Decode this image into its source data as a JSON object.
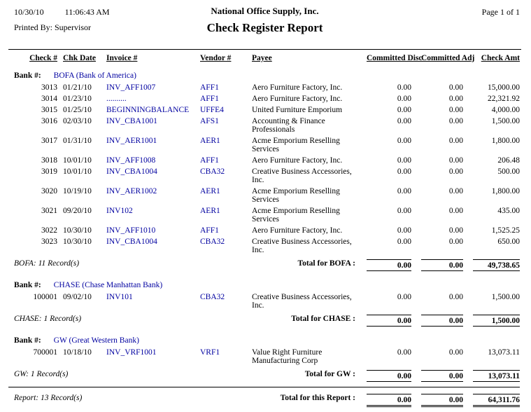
{
  "link_color": "#0000A0",
  "header": {
    "date": "10/30/10",
    "time": "11:06:43 AM",
    "company": "National Office Supply, Inc.",
    "page": "Page 1 of 1",
    "printed_by": "Printed By: Supervisor",
    "title": "Check Register Report"
  },
  "columns": {
    "check_no": "Check #",
    "chk_date": "Chk Date",
    "invoice_no": "Invoice #",
    "vendor_no": "Vendor #",
    "payee": "Payee",
    "committed_disc": "Committed Disc",
    "committed_adj": "Committed Adj",
    "check_amt": "Check Amt"
  },
  "bank_label": "Bank #:",
  "groups": [
    {
      "bank_name": "BOFA (Bank of America)",
      "rows": [
        {
          "check_no": "3013",
          "chk_date": "01/21/10",
          "invoice_no": "INV_AFF1007",
          "vendor_no": "AFF1",
          "payee": "Aero Furniture Factory, Inc.",
          "committed_disc": "0.00",
          "committed_adj": "0.00",
          "check_amt": "15,000.00"
        },
        {
          "check_no": "3014",
          "chk_date": "01/23/10",
          "invoice_no": "..........",
          "vendor_no": "AFF1",
          "payee": "Aero Furniture Factory, Inc.",
          "committed_disc": "0.00",
          "committed_adj": "0.00",
          "check_amt": "22,321.92"
        },
        {
          "check_no": "3015",
          "chk_date": "01/25/10",
          "invoice_no": "BEGINNINGBALANCE",
          "vendor_no": "UFFE4",
          "payee": "United Furniture Emporium",
          "committed_disc": "0.00",
          "committed_adj": "0.00",
          "check_amt": "4,000.00"
        },
        {
          "check_no": "3016",
          "chk_date": "02/03/10",
          "invoice_no": "INV_CBA1001",
          "vendor_no": "AFS1",
          "payee": "Accounting & Finance Professionals",
          "committed_disc": "0.00",
          "committed_adj": "0.00",
          "check_amt": "1,500.00"
        },
        {
          "check_no": "3017",
          "chk_date": "01/31/10",
          "invoice_no": "INV_AER1001",
          "vendor_no": "AER1",
          "payee": "Acme Emporium Reselling Services",
          "committed_disc": "0.00",
          "committed_adj": "0.00",
          "check_amt": "1,800.00"
        },
        {
          "check_no": "3018",
          "chk_date": "10/01/10",
          "invoice_no": "INV_AFF1008",
          "vendor_no": "AFF1",
          "payee": "Aero Furniture Factory, Inc.",
          "committed_disc": "0.00",
          "committed_adj": "0.00",
          "check_amt": "206.48"
        },
        {
          "check_no": "3019",
          "chk_date": "10/01/10",
          "invoice_no": "INV_CBA1004",
          "vendor_no": "CBA32",
          "payee": "Creative Business Accessories, Inc.",
          "committed_disc": "0.00",
          "committed_adj": "0.00",
          "check_amt": "500.00"
        },
        {
          "check_no": "3020",
          "chk_date": "10/19/10",
          "invoice_no": "INV_AER1002",
          "vendor_no": "AER1",
          "payee": "Acme Emporium Reselling Services",
          "committed_disc": "0.00",
          "committed_adj": "0.00",
          "check_amt": "1,800.00"
        },
        {
          "check_no": "3021",
          "chk_date": "09/20/10",
          "invoice_no": "INV102",
          "vendor_no": "AER1",
          "payee": "Acme Emporium Reselling Services",
          "committed_disc": "0.00",
          "committed_adj": "0.00",
          "check_amt": "435.00"
        },
        {
          "check_no": "3022",
          "chk_date": "10/30/10",
          "invoice_no": "INV_AFF1010",
          "vendor_no": "AFF1",
          "payee": "Aero Furniture Factory, Inc.",
          "committed_disc": "0.00",
          "committed_adj": "0.00",
          "check_amt": "1,525.25"
        },
        {
          "check_no": "3023",
          "chk_date": "10/30/10",
          "invoice_no": "INV_CBA1004",
          "vendor_no": "CBA32",
          "payee": "Creative Business Accessories, Inc.",
          "committed_disc": "0.00",
          "committed_adj": "0.00",
          "check_amt": "650.00"
        }
      ],
      "record_count": "BOFA: 11 Record(s)",
      "total_label": "Total for BOFA :",
      "totals": [
        "0.00",
        "0.00",
        "49,738.65"
      ]
    },
    {
      "bank_name": "CHASE (Chase Manhattan Bank)",
      "rows": [
        {
          "check_no": "100001",
          "chk_date": "09/02/10",
          "invoice_no": "INV101",
          "vendor_no": "CBA32",
          "payee": "Creative Business Accessories, Inc.",
          "committed_disc": "0.00",
          "committed_adj": "0.00",
          "check_amt": "1,500.00"
        }
      ],
      "record_count": "CHASE: 1 Record(s)",
      "total_label": "Total for CHASE :",
      "totals": [
        "0.00",
        "0.00",
        "1,500.00"
      ]
    },
    {
      "bank_name": "GW (Great Western Bank)",
      "rows": [
        {
          "check_no": "700001",
          "chk_date": "10/18/10",
          "invoice_no": "INV_VRF1001",
          "vendor_no": "VRF1",
          "payee": "Value Right Furniture Manufacturing Corp",
          "committed_disc": "0.00",
          "committed_adj": "0.00",
          "check_amt": "13,073.11"
        }
      ],
      "record_count": "GW: 1 Record(s)",
      "total_label": "Total for GW :",
      "totals": [
        "0.00",
        "0.00",
        "13,073.11"
      ]
    }
  ],
  "report_footer": {
    "record_count": "Report: 13 Record(s)",
    "total_label": "Total for this Report :",
    "totals": [
      "0.00",
      "0.00",
      "64,311.76"
    ]
  }
}
